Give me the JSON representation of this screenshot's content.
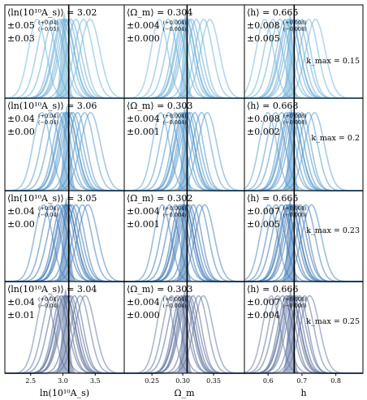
{
  "columns": [
    {
      "xlabel": "ln(10¹⁰A_s)",
      "ticks": [
        "2.5",
        "3.0",
        "3.5"
      ],
      "tick_values": [
        2.5,
        3.0,
        3.5
      ],
      "xlim": [
        2.1,
        3.95
      ],
      "truth": 3.09
    },
    {
      "xlabel": "Ω_m",
      "ticks": [
        "0.25",
        "0.30",
        "0.35"
      ],
      "tick_values": [
        0.25,
        0.3,
        0.35
      ],
      "xlim": [
        0.205,
        0.4
      ],
      "truth": 0.307
    },
    {
      "xlabel": "h",
      "ticks": [
        "0.6",
        "0.7",
        "0.8"
      ],
      "tick_values": [
        0.6,
        0.7,
        0.8
      ],
      "xlim": [
        0.53,
        0.88
      ],
      "truth": 0.677
    }
  ],
  "rows": [
    {
      "kmax_label": "k_max = 0.15",
      "color": "#6aaed6",
      "panels": [
        {
          "mean_text": "⟨ln(10¹⁰A_s)⟩ = 3.02",
          "err_text": "±0.05",
          "err_up": "+0.04",
          "err_dn": "−0.05",
          "bias_text": "±0.03"
        },
        {
          "mean_text": "⟨Ω_m⟩ = 0.304",
          "err_text": "±0.004",
          "err_up": "+0.004",
          "err_dn": "−0.004",
          "bias_text": "±0.000"
        },
        {
          "mean_text": "⟨h⟩ = 0.665",
          "err_text": "±0.008",
          "err_up": "+0.008",
          "err_dn": "−0.008",
          "bias_text": "±0.005"
        }
      ]
    },
    {
      "kmax_label": "k_max = 0.2",
      "color": "#4f94c8",
      "panels": [
        {
          "mean_text": "⟨ln(10¹⁰A_s)⟩ = 3.06",
          "err_text": "±0.04",
          "err_up": "+0.04",
          "err_dn": "−0.04",
          "bias_text": "±0.00"
        },
        {
          "mean_text": "⟨Ω_m⟩ = 0.303",
          "err_text": "±0.004",
          "err_up": "+0.004",
          "err_dn": "−0.004",
          "bias_text": "±0.001"
        },
        {
          "mean_text": "⟨h⟩ = 0.668",
          "err_text": "±0.008",
          "err_up": "+0.008",
          "err_dn": "−0.008",
          "bias_text": "±0.002"
        }
      ]
    },
    {
      "kmax_label": "k_max = 0.23",
      "color": "#3b76b3",
      "panels": [
        {
          "mean_text": "⟨ln(10¹⁰A_s)⟩ = 3.05",
          "err_text": "±0.04",
          "err_up": "+0.04",
          "err_dn": "−0.04",
          "bias_text": "±0.00"
        },
        {
          "mean_text": "⟨Ω_m⟩ = 0.302",
          "err_text": "±0.004",
          "err_up": "+0.004",
          "err_dn": "−0.004",
          "bias_text": "±0.001"
        },
        {
          "mean_text": "⟨h⟩ = 0.665",
          "err_text": "±0.007",
          "err_up": "+0.008",
          "err_dn": "−0.006",
          "bias_text": "±0.005"
        }
      ]
    },
    {
      "kmax_label": "k_max = 0.25",
      "color": "#5a6e9a",
      "panels": [
        {
          "mean_text": "⟨ln(10¹⁰A_s)⟩ = 3.04",
          "err_text": "±0.04",
          "err_up": "+0.04",
          "err_dn": "−0.04",
          "bias_text": "±0.01"
        },
        {
          "mean_text": "⟨Ω_m⟩ = 0.303",
          "err_text": "±0.004",
          "err_up": "+0.004",
          "err_dn": "−0.004",
          "bias_text": "±0.000"
        },
        {
          "mean_text": "⟨h⟩ = 0.666",
          "err_text": "±0.007",
          "err_up": "+0.008",
          "err_dn": "−0.006",
          "bias_text": "±0.004"
        }
      ]
    }
  ],
  "chart_data": {
    "type": "line",
    "description_type": "grid of marginal posterior distributions",
    "grid": {
      "rows": 4,
      "cols": 3
    },
    "parameters": [
      "ln(10¹⁰A_s)",
      "Ω_m",
      "h"
    ],
    "truth_values": [
      3.09,
      0.307,
      0.677
    ],
    "kmax_values": [
      0.15,
      0.2,
      0.23,
      0.25
    ],
    "curve_means": [
      [
        3.02,
        3.06,
        3.05,
        3.04
      ],
      [
        0.304,
        0.303,
        0.302,
        0.303
      ],
      [
        0.665,
        0.668,
        0.665,
        0.666
      ]
    ],
    "realization_offsets": [
      [
        -0.42,
        -0.28,
        -0.16,
        -0.08,
        -0.03,
        0.0,
        0.02,
        0.06,
        0.1,
        0.18,
        0.3,
        0.4
      ],
      [
        -0.042,
        -0.028,
        -0.016,
        -0.008,
        -0.003,
        0.0,
        0.002,
        0.006,
        0.01,
        0.018,
        0.03,
        0.04
      ],
      [
        -0.075,
        -0.05,
        -0.03,
        -0.015,
        -0.006,
        0.0,
        0.004,
        0.012,
        0.022,
        0.035,
        0.055,
        0.075
      ]
    ],
    "realization_widths": [
      0.16,
      0.016,
      0.03
    ],
    "combined_widths": [
      0.05,
      0.004,
      0.008
    ],
    "ylim": [
      0,
      1.05
    ]
  }
}
